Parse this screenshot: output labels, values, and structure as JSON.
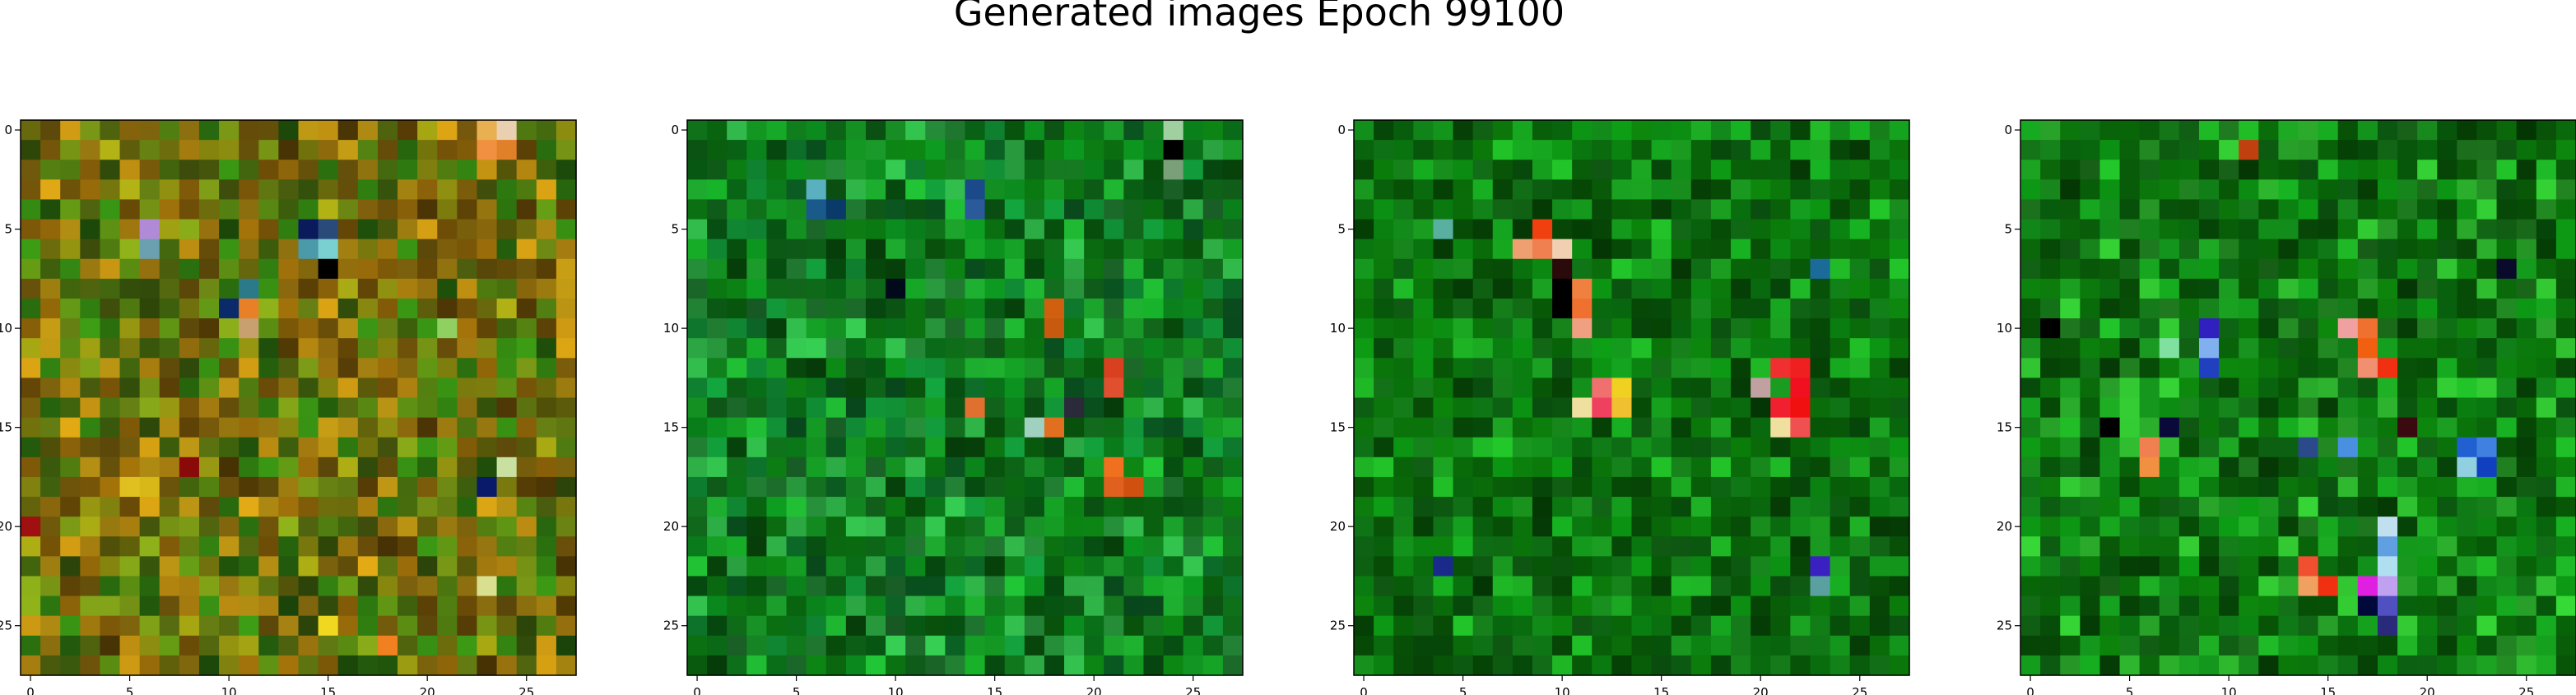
{
  "figure": {
    "title": "Generated images Epoch 99100"
  },
  "chart_data": [
    {
      "type": "heatmap",
      "grid_size": [
        28,
        28
      ],
      "xlim": [
        -0.5,
        27.5
      ],
      "ylim": [
        27.5,
        -0.5
      ],
      "x_ticks": [
        0,
        5,
        10,
        15,
        20,
        25
      ],
      "y_ticks": [
        0,
        5,
        10,
        15,
        20,
        25
      ],
      "palette": {
        "base_colors": [
          "#6f8a14",
          "#8a8a10",
          "#9a7a10",
          "#4f7a10",
          "#2f7a10",
          "#b08410",
          "#7f5a08"
        ],
        "seed": 11,
        "highlights": [
          {
            "row": 5,
            "col": 6,
            "color": "#b08ad6"
          },
          {
            "row": 6,
            "col": 6,
            "color": "#6aa0b0"
          },
          {
            "row": 5,
            "col": 14,
            "color": "#0a1a5a"
          },
          {
            "row": 5,
            "col": 15,
            "color": "#2a4a7a"
          },
          {
            "row": 6,
            "col": 14,
            "color": "#4a9aaa"
          },
          {
            "row": 6,
            "col": 15,
            "color": "#7ad0d0"
          },
          {
            "row": 7,
            "col": 15,
            "color": "#000000"
          },
          {
            "row": 8,
            "col": 11,
            "color": "#2a7a8a"
          },
          {
            "row": 9,
            "col": 10,
            "color": "#0a2a6a"
          },
          {
            "row": 9,
            "col": 11,
            "color": "#e88028"
          },
          {
            "row": 10,
            "col": 11,
            "color": "#c8a070"
          },
          {
            "row": 0,
            "col": 23,
            "color": "#e8b050"
          },
          {
            "row": 0,
            "col": 24,
            "color": "#e8d0b0"
          },
          {
            "row": 1,
            "col": 23,
            "color": "#f09040"
          },
          {
            "row": 1,
            "col": 24,
            "color": "#e08028"
          },
          {
            "row": 17,
            "col": 8,
            "color": "#8a0a0a"
          },
          {
            "row": 18,
            "col": 5,
            "color": "#e0c020"
          },
          {
            "row": 18,
            "col": 6,
            "color": "#d8b818"
          },
          {
            "row": 17,
            "col": 24,
            "color": "#c8e0a0"
          },
          {
            "row": 18,
            "col": 23,
            "color": "#0a1a6a"
          },
          {
            "row": 25,
            "col": 15,
            "color": "#f0d820"
          },
          {
            "row": 26,
            "col": 18,
            "color": "#f08020"
          },
          {
            "row": 20,
            "col": 0,
            "color": "#a01010"
          },
          {
            "row": 23,
            "col": 23,
            "color": "#d8e090"
          },
          {
            "row": 10,
            "col": 21,
            "color": "#90d060"
          }
        ]
      }
    },
    {
      "type": "heatmap",
      "grid_size": [
        28,
        28
      ],
      "xlim": [
        -0.5,
        27.5
      ],
      "ylim": [
        27.5,
        -0.5
      ],
      "x_ticks": [
        0,
        5,
        10,
        15,
        20,
        25
      ],
      "y_ticks": [
        0,
        5,
        10,
        15,
        20,
        25
      ],
      "palette": {
        "base_colors": [
          "#0a7a1a",
          "#128a20",
          "#1a9a2a",
          "#0a6a10",
          "#2aa040",
          "#0f8030"
        ],
        "seed": 23,
        "highlights": [
          {
            "row": 3,
            "col": 6,
            "color": "#5ab0c0"
          },
          {
            "row": 4,
            "col": 6,
            "color": "#1a5a8a"
          },
          {
            "row": 4,
            "col": 7,
            "color": "#0a3a6a"
          },
          {
            "row": 3,
            "col": 14,
            "color": "#1a4a8a"
          },
          {
            "row": 4,
            "col": 14,
            "color": "#2a5a9a"
          },
          {
            "row": 0,
            "col": 24,
            "color": "#a0d0a0"
          },
          {
            "row": 1,
            "col": 24,
            "color": "#000000"
          },
          {
            "row": 2,
            "col": 24,
            "color": "#7aa07a"
          },
          {
            "row": 9,
            "col": 18,
            "color": "#d06010"
          },
          {
            "row": 10,
            "col": 18,
            "color": "#c85a10"
          },
          {
            "row": 12,
            "col": 21,
            "color": "#d84020"
          },
          {
            "row": 13,
            "col": 21,
            "color": "#e05030"
          },
          {
            "row": 14,
            "col": 14,
            "color": "#e07030"
          },
          {
            "row": 14,
            "col": 19,
            "color": "#2a2a3a"
          },
          {
            "row": 15,
            "col": 17,
            "color": "#a0d0c0"
          },
          {
            "row": 15,
            "col": 18,
            "color": "#e07020"
          },
          {
            "row": 17,
            "col": 21,
            "color": "#f07020"
          },
          {
            "row": 18,
            "col": 21,
            "color": "#e06020"
          },
          {
            "row": 18,
            "col": 22,
            "color": "#d05010"
          },
          {
            "row": 8,
            "col": 10,
            "color": "#000a1a"
          }
        ]
      }
    },
    {
      "type": "heatmap",
      "grid_size": [
        28,
        28
      ],
      "xlim": [
        -0.5,
        27.5
      ],
      "ylim": [
        27.5,
        -0.5
      ],
      "x_ticks": [
        0,
        5,
        10,
        15,
        20,
        25
      ],
      "y_ticks": [
        0,
        5,
        10,
        15,
        20,
        25
      ],
      "palette": {
        "base_colors": [
          "#0a7a10",
          "#128a1a",
          "#0a6a0a",
          "#1a9a20",
          "#086008"
        ],
        "seed": 37,
        "highlights": [
          {
            "row": 5,
            "col": 9,
            "color": "#f04010"
          },
          {
            "row": 6,
            "col": 8,
            "color": "#f0a070"
          },
          {
            "row": 6,
            "col": 9,
            "color": "#f08050"
          },
          {
            "row": 6,
            "col": 10,
            "color": "#f0d0b0"
          },
          {
            "row": 7,
            "col": 10,
            "color": "#2a0a0a"
          },
          {
            "row": 8,
            "col": 11,
            "color": "#f08040"
          },
          {
            "row": 9,
            "col": 11,
            "color": "#f07030"
          },
          {
            "row": 10,
            "col": 11,
            "color": "#f0a080"
          },
          {
            "row": 8,
            "col": 10,
            "color": "#000000"
          },
          {
            "row": 9,
            "col": 10,
            "color": "#000000"
          },
          {
            "row": 13,
            "col": 12,
            "color": "#f07070"
          },
          {
            "row": 13,
            "col": 13,
            "color": "#f0d020"
          },
          {
            "row": 14,
            "col": 11,
            "color": "#f0e0a0"
          },
          {
            "row": 14,
            "col": 12,
            "color": "#f04060"
          },
          {
            "row": 14,
            "col": 13,
            "color": "#f0c030"
          },
          {
            "row": 12,
            "col": 21,
            "color": "#f03030"
          },
          {
            "row": 12,
            "col": 22,
            "color": "#f02020"
          },
          {
            "row": 13,
            "col": 20,
            "color": "#c0a0a0"
          },
          {
            "row": 13,
            "col": 22,
            "color": "#f01020"
          },
          {
            "row": 14,
            "col": 21,
            "color": "#f02030"
          },
          {
            "row": 14,
            "col": 22,
            "color": "#f01010"
          },
          {
            "row": 15,
            "col": 21,
            "color": "#f0e0a0"
          },
          {
            "row": 15,
            "col": 22,
            "color": "#f05050"
          },
          {
            "row": 22,
            "col": 4,
            "color": "#1a2a8a"
          },
          {
            "row": 22,
            "col": 23,
            "color": "#3a20c0"
          },
          {
            "row": 23,
            "col": 23,
            "color": "#5aa0a0"
          },
          {
            "row": 5,
            "col": 4,
            "color": "#5ab0a0"
          },
          {
            "row": 7,
            "col": 23,
            "color": "#1a6a9a"
          }
        ]
      }
    },
    {
      "type": "heatmap",
      "grid_size": [
        28,
        28
      ],
      "xlim": [
        -0.5,
        27.5
      ],
      "ylim": [
        27.5,
        -0.5
      ],
      "x_ticks": [
        0,
        5,
        10,
        15,
        20,
        25
      ],
      "y_ticks": [
        0,
        5,
        10,
        15,
        20,
        25
      ],
      "palette": {
        "base_colors": [
          "#0a7a10",
          "#128a1a",
          "#0a6a0a",
          "#1a9a20",
          "#2aa82a",
          "#086008"
        ],
        "seed": 51,
        "highlights": [
          {
            "row": 1,
            "col": 11,
            "color": "#c04010"
          },
          {
            "row": 10,
            "col": 9,
            "color": "#3020c0"
          },
          {
            "row": 11,
            "col": 9,
            "color": "#80b0f0"
          },
          {
            "row": 12,
            "col": 9,
            "color": "#2040c0"
          },
          {
            "row": 11,
            "col": 7,
            "color": "#80e0a0"
          },
          {
            "row": 10,
            "col": 16,
            "color": "#f0a0a0"
          },
          {
            "row": 10,
            "col": 17,
            "color": "#f07030"
          },
          {
            "row": 11,
            "col": 17,
            "color": "#f06010"
          },
          {
            "row": 12,
            "col": 17,
            "color": "#f09070"
          },
          {
            "row": 12,
            "col": 18,
            "color": "#f03010"
          },
          {
            "row": 16,
            "col": 6,
            "color": "#f08050"
          },
          {
            "row": 17,
            "col": 6,
            "color": "#f09040"
          },
          {
            "row": 16,
            "col": 16,
            "color": "#4a90e0"
          },
          {
            "row": 16,
            "col": 14,
            "color": "#2a4a8a"
          },
          {
            "row": 16,
            "col": 22,
            "color": "#2060d0"
          },
          {
            "row": 16,
            "col": 23,
            "color": "#4080e0"
          },
          {
            "row": 17,
            "col": 22,
            "color": "#90d0e0"
          },
          {
            "row": 17,
            "col": 23,
            "color": "#1040c0"
          },
          {
            "row": 15,
            "col": 4,
            "color": "#000000"
          },
          {
            "row": 15,
            "col": 7,
            "color": "#0a0a3a"
          },
          {
            "row": 15,
            "col": 19,
            "color": "#3a0a10"
          },
          {
            "row": 20,
            "col": 18,
            "color": "#c0e0f0"
          },
          {
            "row": 21,
            "col": 18,
            "color": "#60a0e0"
          },
          {
            "row": 22,
            "col": 14,
            "color": "#f05030"
          },
          {
            "row": 22,
            "col": 18,
            "color": "#b0e0f0"
          },
          {
            "row": 23,
            "col": 14,
            "color": "#f0a060"
          },
          {
            "row": 23,
            "col": 15,
            "color": "#f03010"
          },
          {
            "row": 23,
            "col": 17,
            "color": "#e020e0"
          },
          {
            "row": 23,
            "col": 18,
            "color": "#c0a0f0"
          },
          {
            "row": 24,
            "col": 17,
            "color": "#000a3a"
          },
          {
            "row": 24,
            "col": 18,
            "color": "#5050c0"
          },
          {
            "row": 25,
            "col": 18,
            "color": "#2a2a7a"
          },
          {
            "row": 7,
            "col": 24,
            "color": "#0a0a2a"
          },
          {
            "row": 10,
            "col": 1,
            "color": "#000000"
          }
        ]
      }
    }
  ]
}
